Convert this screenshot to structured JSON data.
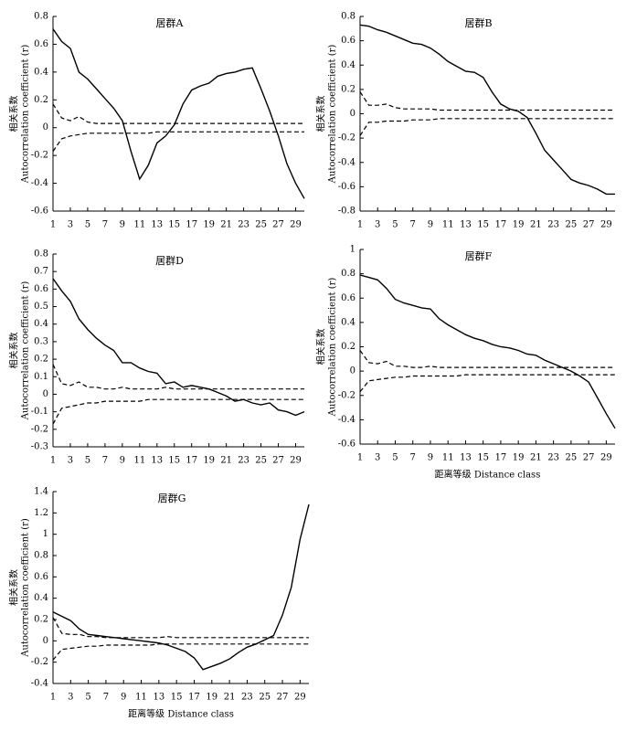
{
  "chart_data": [
    {
      "type": "line",
      "title": "居群A",
      "ylabel": [
        "相关系数",
        "Autocorrelation coefficient (r)"
      ],
      "x": [
        1,
        2,
        3,
        4,
        5,
        6,
        7,
        8,
        9,
        10,
        11,
        12,
        13,
        14,
        15,
        16,
        17,
        18,
        19,
        20,
        21,
        22,
        23,
        24,
        25,
        26,
        27,
        28,
        29,
        30
      ],
      "xlim": [
        1,
        30
      ],
      "xticks": [
        1,
        3,
        5,
        7,
        9,
        11,
        13,
        15,
        17,
        19,
        21,
        23,
        25,
        27,
        29
      ],
      "ylim": [
        -0.6,
        0.8
      ],
      "yticks": [
        0.8,
        0.6,
        0.4,
        0.2,
        0,
        -0.2,
        -0.4,
        -0.6
      ],
      "series": [
        {
          "color": "#000000",
          "style": "solid",
          "values": [
            0.71,
            0.62,
            0.57,
            0.4,
            0.35,
            0.28,
            0.21,
            0.14,
            0.05,
            -0.17,
            -0.37,
            -0.27,
            -0.11,
            -0.06,
            0.02,
            0.17,
            0.27,
            0.3,
            0.32,
            0.37,
            0.39,
            0.4,
            0.42,
            0.43,
            0.28,
            0.12,
            -0.06,
            -0.26,
            -0.4,
            -0.51
          ]
        },
        {
          "color": "#000000",
          "style": "dashed",
          "values": [
            0.17,
            0.07,
            0.05,
            0.08,
            0.04,
            0.03,
            0.03,
            0.03,
            0.03,
            0.03,
            0.03,
            0.03,
            0.03,
            0.03,
            0.03,
            0.03,
            0.03,
            0.03,
            0.03,
            0.03,
            0.03,
            0.03,
            0.03,
            0.03,
            0.03,
            0.03,
            0.03,
            0.03,
            0.03,
            0.03
          ]
        },
        {
          "color": "#000000",
          "style": "dashed",
          "values": [
            -0.17,
            -0.08,
            -0.06,
            -0.05,
            -0.04,
            -0.04,
            -0.04,
            -0.04,
            -0.04,
            -0.04,
            -0.04,
            -0.04,
            -0.03,
            -0.03,
            -0.03,
            -0.03,
            -0.03,
            -0.03,
            -0.03,
            -0.03,
            -0.03,
            -0.03,
            -0.03,
            -0.03,
            -0.03,
            -0.03,
            -0.03,
            -0.03,
            -0.03,
            -0.03
          ]
        }
      ]
    },
    {
      "type": "line",
      "title": "居群B",
      "ylabel": [
        "相关系数",
        "Autocorrelation coefficient (r)"
      ],
      "x": [
        1,
        2,
        3,
        4,
        5,
        6,
        7,
        8,
        9,
        10,
        11,
        12,
        13,
        14,
        15,
        16,
        17,
        18,
        19,
        20,
        21,
        22,
        23,
        24,
        25,
        26,
        27,
        28,
        29,
        30
      ],
      "xlim": [
        1,
        30
      ],
      "xticks": [
        1,
        3,
        5,
        7,
        9,
        11,
        13,
        15,
        17,
        19,
        21,
        23,
        25,
        27,
        29
      ],
      "ylim": [
        -0.8,
        0.8
      ],
      "yticks": [
        0.8,
        0.6,
        0.4,
        0.2,
        0,
        -0.2,
        -0.4,
        -0.6,
        -0.8
      ],
      "series": [
        {
          "color": "#000000",
          "style": "solid",
          "values": [
            0.73,
            0.72,
            0.69,
            0.67,
            0.64,
            0.61,
            0.58,
            0.57,
            0.54,
            0.49,
            0.43,
            0.39,
            0.35,
            0.34,
            0.3,
            0.18,
            0.08,
            0.04,
            0.02,
            -0.03,
            -0.16,
            -0.3,
            -0.38,
            -0.46,
            -0.54,
            -0.57,
            -0.59,
            -0.62,
            -0.66,
            -0.66
          ]
        },
        {
          "color": "#000000",
          "style": "dashed",
          "values": [
            0.18,
            0.07,
            0.07,
            0.08,
            0.05,
            0.04,
            0.04,
            0.04,
            0.04,
            0.03,
            0.03,
            0.03,
            0.03,
            0.03,
            0.03,
            0.03,
            0.03,
            0.03,
            0.03,
            0.03,
            0.03,
            0.03,
            0.03,
            0.03,
            0.03,
            0.03,
            0.03,
            0.03,
            0.03,
            0.03
          ]
        },
        {
          "color": "#000000",
          "style": "dashed",
          "values": [
            -0.18,
            -0.07,
            -0.07,
            -0.06,
            -0.06,
            -0.06,
            -0.05,
            -0.05,
            -0.05,
            -0.04,
            -0.04,
            -0.04,
            -0.04,
            -0.04,
            -0.04,
            -0.04,
            -0.04,
            -0.04,
            -0.04,
            -0.04,
            -0.04,
            -0.04,
            -0.04,
            -0.04,
            -0.04,
            -0.04,
            -0.04,
            -0.04,
            -0.04,
            -0.04
          ]
        }
      ]
    },
    {
      "type": "line",
      "title": "居群D",
      "ylabel": [
        "相关系数",
        "Autocorrelation coefficient (r)"
      ],
      "x": [
        1,
        2,
        3,
        4,
        5,
        6,
        7,
        8,
        9,
        10,
        11,
        12,
        13,
        14,
        15,
        16,
        17,
        18,
        19,
        20,
        21,
        22,
        23,
        24,
        25,
        26,
        27,
        28,
        29,
        30
      ],
      "xlim": [
        1,
        30
      ],
      "xticks": [
        1,
        3,
        5,
        7,
        9,
        11,
        13,
        15,
        17,
        19,
        21,
        23,
        25,
        27,
        29
      ],
      "ylim": [
        -0.3,
        0.8
      ],
      "yticks": [
        0.8,
        0.7,
        0.6,
        0.5,
        0.4,
        0.3,
        0.2,
        0.1,
        0,
        -0.1,
        -0.2,
        -0.3
      ],
      "series": [
        {
          "color": "#000000",
          "style": "solid",
          "values": [
            0.66,
            0.59,
            0.53,
            0.43,
            0.37,
            0.32,
            0.28,
            0.25,
            0.18,
            0.18,
            0.15,
            0.13,
            0.12,
            0.06,
            0.07,
            0.04,
            0.05,
            0.04,
            0.03,
            0.01,
            -0.01,
            -0.04,
            -0.03,
            -0.05,
            -0.06,
            -0.05,
            -0.09,
            -0.1,
            -0.12,
            -0.1
          ]
        },
        {
          "color": "#000000",
          "style": "dashed",
          "values": [
            0.17,
            0.06,
            0.05,
            0.07,
            0.04,
            0.04,
            0.03,
            0.03,
            0.04,
            0.03,
            0.03,
            0.03,
            0.03,
            0.04,
            0.03,
            0.03,
            0.03,
            0.03,
            0.03,
            0.03,
            0.03,
            0.03,
            0.03,
            0.03,
            0.03,
            0.03,
            0.03,
            0.03,
            0.03,
            0.03
          ]
        },
        {
          "color": "#000000",
          "style": "dashed",
          "values": [
            -0.17,
            -0.08,
            -0.07,
            -0.06,
            -0.05,
            -0.05,
            -0.04,
            -0.04,
            -0.04,
            -0.04,
            -0.04,
            -0.03,
            -0.03,
            -0.03,
            -0.03,
            -0.03,
            -0.03,
            -0.03,
            -0.03,
            -0.03,
            -0.03,
            -0.03,
            -0.03,
            -0.03,
            -0.03,
            -0.03,
            -0.03,
            -0.03,
            -0.03,
            -0.03
          ]
        }
      ]
    },
    {
      "type": "line",
      "title": "居群F",
      "ylabel": [
        "相关系数",
        "Autocorrelation coefficient (r)"
      ],
      "xlabel": "距离等级  Distance class",
      "x": [
        1,
        2,
        3,
        4,
        5,
        6,
        7,
        8,
        9,
        10,
        11,
        12,
        13,
        14,
        15,
        16,
        17,
        18,
        19,
        20,
        21,
        22,
        23,
        24,
        25,
        26,
        27,
        28,
        29,
        30
      ],
      "xlim": [
        1,
        30
      ],
      "xticks": [
        1,
        3,
        5,
        7,
        9,
        11,
        13,
        15,
        17,
        19,
        21,
        23,
        25,
        27,
        29
      ],
      "ylim": [
        -0.6,
        1
      ],
      "yticks": [
        1,
        0.8,
        0.6,
        0.4,
        0.2,
        0,
        -0.2,
        -0.4,
        -0.6
      ],
      "series": [
        {
          "color": "#000000",
          "style": "solid",
          "values": [
            0.79,
            0.77,
            0.75,
            0.68,
            0.59,
            0.56,
            0.54,
            0.52,
            0.51,
            0.43,
            0.38,
            0.34,
            0.3,
            0.27,
            0.25,
            0.22,
            0.2,
            0.19,
            0.17,
            0.14,
            0.13,
            0.09,
            0.06,
            0.03,
            0.0,
            -0.04,
            -0.09,
            -0.22,
            -0.35,
            -0.47
          ]
        },
        {
          "color": "#000000",
          "style": "dashed",
          "values": [
            0.17,
            0.07,
            0.06,
            0.08,
            0.04,
            0.04,
            0.03,
            0.03,
            0.04,
            0.03,
            0.03,
            0.03,
            0.03,
            0.03,
            0.03,
            0.03,
            0.03,
            0.03,
            0.03,
            0.03,
            0.03,
            0.03,
            0.03,
            0.03,
            0.03,
            0.03,
            0.03,
            0.03,
            0.03,
            0.03
          ]
        },
        {
          "color": "#000000",
          "style": "dashed",
          "values": [
            -0.17,
            -0.08,
            -0.07,
            -0.06,
            -0.05,
            -0.05,
            -0.04,
            -0.04,
            -0.04,
            -0.04,
            -0.04,
            -0.04,
            -0.03,
            -0.03,
            -0.03,
            -0.03,
            -0.03,
            -0.03,
            -0.03,
            -0.03,
            -0.03,
            -0.03,
            -0.03,
            -0.03,
            -0.03,
            -0.03,
            -0.03,
            -0.03,
            -0.03,
            -0.03
          ]
        }
      ]
    },
    {
      "type": "line",
      "title": "居群G",
      "ylabel": [
        "相关系数",
        "Autocorrelation coefficient (r)"
      ],
      "xlabel": "距离等级  Distance class",
      "x": [
        1,
        2,
        3,
        4,
        5,
        6,
        7,
        8,
        9,
        10,
        11,
        12,
        13,
        14,
        15,
        16,
        17,
        18,
        19,
        20,
        21,
        22,
        23,
        24,
        25,
        26,
        27,
        28,
        29,
        30
      ],
      "xlim": [
        1,
        30
      ],
      "xticks": [
        1,
        3,
        5,
        7,
        9,
        11,
        13,
        15,
        17,
        19,
        21,
        23,
        25,
        27,
        29
      ],
      "ylim": [
        -0.4,
        1.4
      ],
      "yticks": [
        1.4,
        1.2,
        1,
        0.8,
        0.6,
        0.4,
        0.2,
        0,
        -0.2,
        -0.4
      ],
      "series": [
        {
          "color": "#000000",
          "style": "solid",
          "values": [
            0.27,
            0.23,
            0.19,
            0.11,
            0.06,
            0.05,
            0.04,
            0.03,
            0.02,
            0.01,
            0.0,
            -0.01,
            -0.02,
            -0.04,
            -0.07,
            -0.1,
            -0.16,
            -0.27,
            -0.24,
            -0.21,
            -0.17,
            -0.11,
            -0.06,
            -0.03,
            0.01,
            0.05,
            0.24,
            0.5,
            0.95,
            1.28
          ]
        },
        {
          "color": "#000000",
          "style": "dashed",
          "values": [
            0.22,
            0.07,
            0.06,
            0.06,
            0.04,
            0.04,
            0.03,
            0.03,
            0.03,
            0.03,
            0.03,
            0.03,
            0.03,
            0.04,
            0.03,
            0.03,
            0.03,
            0.03,
            0.03,
            0.03,
            0.03,
            0.03,
            0.03,
            0.03,
            0.03,
            0.03,
            0.03,
            0.03,
            0.03,
            0.03
          ]
        },
        {
          "color": "#000000",
          "style": "dashed",
          "values": [
            -0.18,
            -0.08,
            -0.07,
            -0.06,
            -0.05,
            -0.05,
            -0.04,
            -0.04,
            -0.04,
            -0.04,
            -0.04,
            -0.04,
            -0.03,
            -0.03,
            -0.03,
            -0.03,
            -0.03,
            -0.03,
            -0.03,
            -0.03,
            -0.03,
            -0.03,
            -0.03,
            -0.03,
            -0.03,
            -0.03,
            -0.03,
            -0.03,
            -0.03,
            -0.03
          ]
        }
      ]
    }
  ]
}
